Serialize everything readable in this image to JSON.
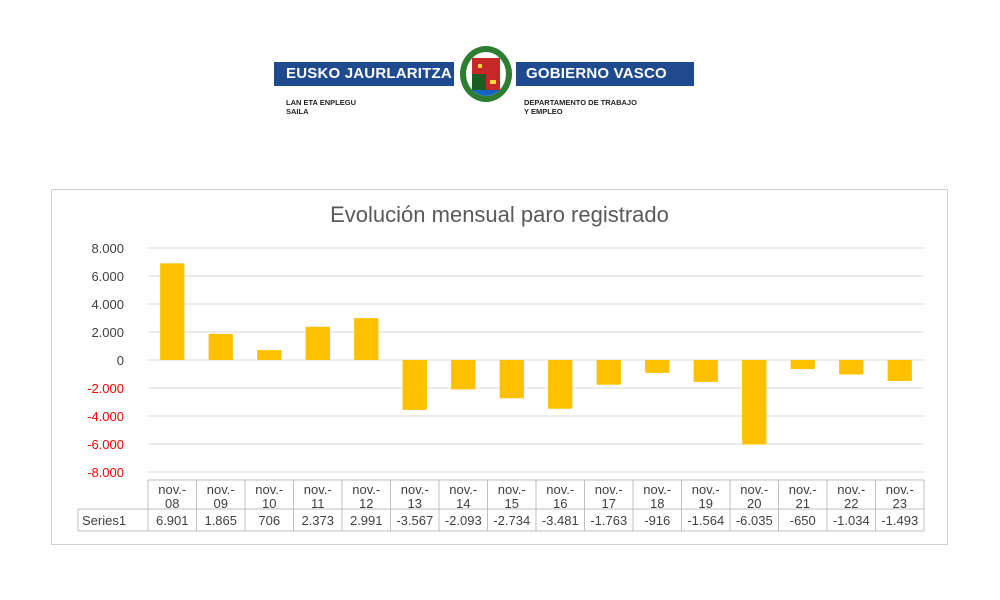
{
  "header": {
    "left_title": "EUSKO JAURLARITZA",
    "right_title": "GOBIERNO VASCO",
    "left_dept": "LAN ETA ENPLEGU\nSAILA",
    "right_dept": "DEPARTAMENTO DE TRABAJO\nY EMPLEO",
    "brand_color": "#1f4b8e"
  },
  "chart_data": {
    "type": "bar",
    "title": "Evolución mensual paro registrado",
    "categories": [
      [
        "nov.-",
        "08"
      ],
      [
        "nov.-",
        "09"
      ],
      [
        "nov.-",
        "10"
      ],
      [
        "nov.-",
        "11"
      ],
      [
        "nov.-",
        "12"
      ],
      [
        "nov.-",
        "13"
      ],
      [
        "nov.-",
        "14"
      ],
      [
        "nov.-",
        "15"
      ],
      [
        "nov.-",
        "16"
      ],
      [
        "nov.-",
        "17"
      ],
      [
        "nov.-",
        "18"
      ],
      [
        "nov.-",
        "19"
      ],
      [
        "nov.-",
        "20"
      ],
      [
        "nov.-",
        "21"
      ],
      [
        "nov.-",
        "22"
      ],
      [
        "nov.-",
        "23"
      ]
    ],
    "series": [
      {
        "name": "Series1",
        "values": [
          6901,
          1865,
          706,
          2373,
          2991,
          -3567,
          -2093,
          -2734,
          -3481,
          -1763,
          -916,
          -1564,
          -6035,
          -650,
          -1034,
          -1493
        ],
        "labels": [
          "6.901",
          "1.865",
          "706",
          "2.373",
          "2.991",
          "-3.567",
          "-2.093",
          "-2.734",
          "-3.481",
          "-1.763",
          "-916",
          "-1.564",
          "-6.035",
          "-650",
          "-1.034",
          "-1.493"
        ],
        "color": "#ffc000"
      }
    ],
    "ylim": [
      -8000,
      8000
    ],
    "yticks": [
      8000,
      6000,
      4000,
      2000,
      0,
      -2000,
      -4000,
      -6000,
      -8000
    ],
    "ytick_labels": [
      "8.000",
      "6.000",
      "4.000",
      "2.000",
      "0",
      "-2.000",
      "-4.000",
      "-6.000",
      "-8.000"
    ],
    "negative_tick_color": "#ff0000",
    "positive_tick_color": "#404040",
    "grid": true,
    "data_table": true
  }
}
